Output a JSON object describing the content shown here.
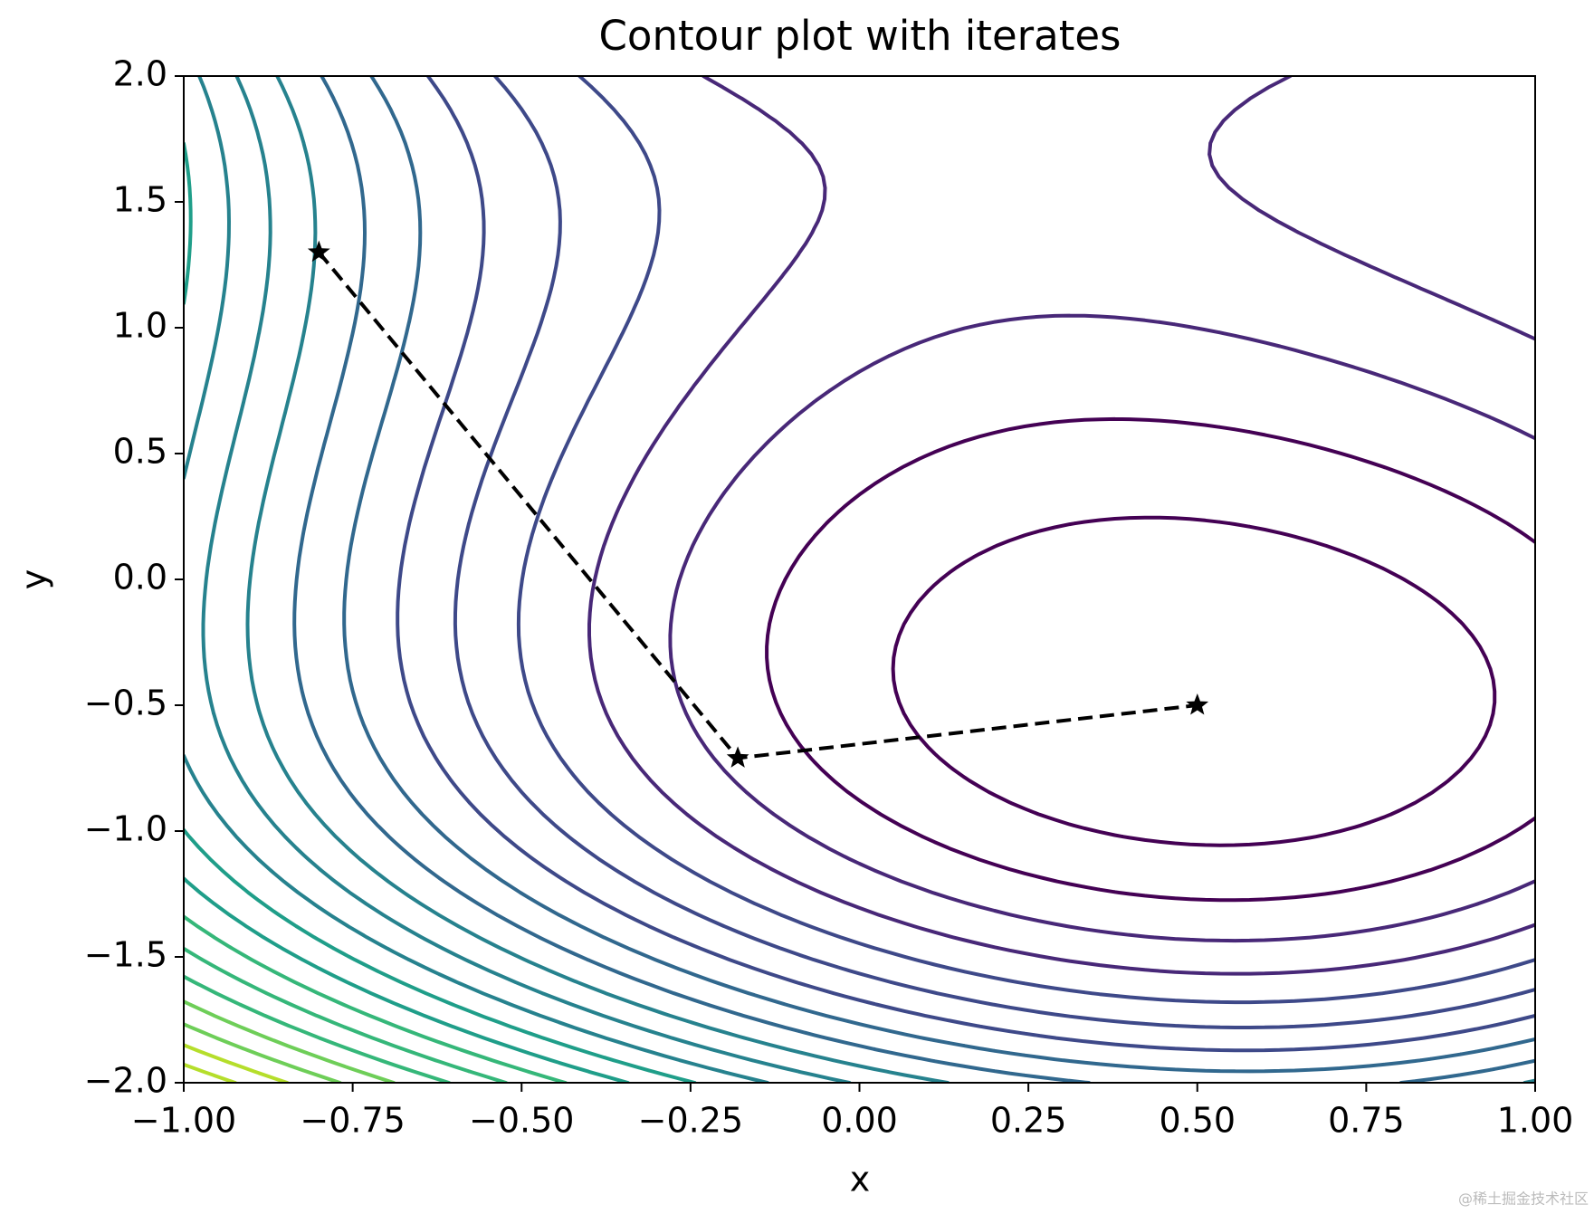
{
  "chart_data": {
    "type": "contour",
    "title": "Contour plot with iterates",
    "x_label": "x",
    "y_label": "y",
    "xlim": [
      -1,
      1
    ],
    "ylim": [
      -2,
      2
    ],
    "xticks": [
      {
        "value": -1,
        "label": "−1.00"
      },
      {
        "value": -0.75,
        "label": "−0.75"
      },
      {
        "value": -0.5,
        "label": "−0.50"
      },
      {
        "value": -0.25,
        "label": "−0.25"
      },
      {
        "value": 0,
        "label": "0.00"
      },
      {
        "value": 0.25,
        "label": "0.25"
      },
      {
        "value": 0.5,
        "label": "0.50"
      },
      {
        "value": 0.75,
        "label": "0.75"
      },
      {
        "value": 1,
        "label": "1.00"
      }
    ],
    "yticks": [
      {
        "value": -2,
        "label": "−2.0"
      },
      {
        "value": -1.5,
        "label": "−1.5"
      },
      {
        "value": -1,
        "label": "−1.0"
      },
      {
        "value": -0.5,
        "label": "−0.5"
      },
      {
        "value": 0,
        "label": "0.0"
      },
      {
        "value": 0.5,
        "label": "0.5"
      },
      {
        "value": 1,
        "label": "1.0"
      },
      {
        "value": 1.5,
        "label": "1.5"
      },
      {
        "value": 2,
        "label": "2.0"
      }
    ],
    "series": [
      {
        "color": "#000000",
        "x": [
          -0.8,
          -0.18,
          0.5
        ],
        "y": [
          1.3,
          -0.71,
          -0.5
        ]
      }
    ],
    "watermark": "@稀土掘金技术社区"
  }
}
